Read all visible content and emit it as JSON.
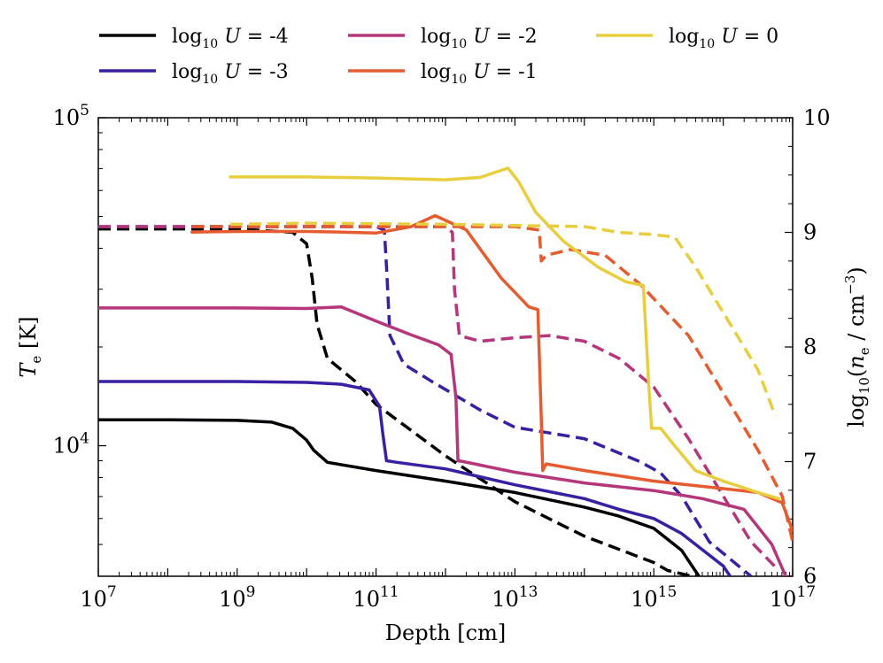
{
  "chart_data": {
    "type": "line",
    "title": "",
    "xlabel": "Depth [cm]",
    "ylabel_left": "T_e [K]",
    "ylabel_right": "log10(n_e / cm^-3)",
    "xscale": "log",
    "xlim": [
      10000000,
      100000000000000000
    ],
    "yscale_left": "log",
    "ylim_left": [
      4000,
      100000
    ],
    "ylim_right": [
      6,
      10
    ],
    "grid": false,
    "legend_position": "top (above plot, 3 columns)",
    "x_tick_labels": [
      {
        "base": "10",
        "exp": "7"
      },
      {
        "base": "10",
        "exp": "9"
      },
      {
        "base": "10",
        "exp": "11"
      },
      {
        "base": "10",
        "exp": "13"
      },
      {
        "base": "10",
        "exp": "15"
      },
      {
        "base": "10",
        "exp": "17"
      }
    ],
    "left_tick_labels": [
      {
        "base": "10",
        "exp": "4"
      },
      {
        "base": "10",
        "exp": "5"
      }
    ],
    "right_tick_labels": [
      "6",
      "7",
      "8",
      "9",
      "10"
    ],
    "line_styles": {
      "solid": "T_e (left axis)",
      "dashed": "n_e (right axis)"
    },
    "series": [
      {
        "name": "log10 U = -4",
        "legend_prefix": "log",
        "legend_sub": "10",
        "legend_var": "U",
        "legend_value": "= -4",
        "color": "#000004",
        "temperature": [
          [
            7.0,
            12000
          ],
          [
            8.0,
            12000
          ],
          [
            9.0,
            11950
          ],
          [
            9.5,
            11800
          ],
          [
            9.8,
            11300
          ],
          [
            10.0,
            10400
          ],
          [
            10.1,
            9700
          ],
          [
            10.3,
            8900
          ],
          [
            11.0,
            8400
          ],
          [
            12.0,
            7800
          ],
          [
            13.0,
            7200
          ],
          [
            14.0,
            6500
          ],
          [
            14.5,
            6100
          ],
          [
            15.0,
            5600
          ],
          [
            15.4,
            4800
          ],
          [
            15.65,
            4000
          ]
        ],
        "density": [
          [
            7.0,
            9.03
          ],
          [
            9.0,
            9.03
          ],
          [
            9.8,
            9.0
          ],
          [
            10.0,
            8.9
          ],
          [
            10.08,
            8.6
          ],
          [
            10.15,
            8.2
          ],
          [
            10.3,
            7.9
          ],
          [
            10.7,
            7.7
          ],
          [
            11.0,
            7.5
          ],
          [
            12.0,
            7.05
          ],
          [
            13.0,
            6.65
          ],
          [
            14.0,
            6.35
          ],
          [
            15.0,
            6.12
          ],
          [
            15.2,
            6.05
          ],
          [
            15.55,
            6.0
          ]
        ]
      },
      {
        "name": "log10 U = -3",
        "legend_prefix": "log",
        "legend_sub": "10",
        "legend_var": "U",
        "legend_value": "= -3",
        "color": "#3b1fa3",
        "temperature": [
          [
            7.0,
            15700
          ],
          [
            9.0,
            15700
          ],
          [
            10.0,
            15600
          ],
          [
            10.5,
            15400
          ],
          [
            10.9,
            14800
          ],
          [
            11.05,
            13200
          ],
          [
            11.1,
            10800
          ],
          [
            11.15,
            9000
          ],
          [
            11.3,
            8900
          ],
          [
            12.0,
            8500
          ],
          [
            13.0,
            7600
          ],
          [
            14.0,
            6900
          ],
          [
            14.5,
            6400
          ],
          [
            15.0,
            6000
          ],
          [
            15.4,
            5400
          ],
          [
            16.0,
            4300
          ],
          [
            16.1,
            4000
          ]
        ],
        "density": [
          [
            7.0,
            9.05
          ],
          [
            11.0,
            9.05
          ],
          [
            11.12,
            9.02
          ],
          [
            11.15,
            8.7
          ],
          [
            11.2,
            8.1
          ],
          [
            11.4,
            7.85
          ],
          [
            11.8,
            7.7
          ],
          [
            12.5,
            7.45
          ],
          [
            13.0,
            7.3
          ],
          [
            14.0,
            7.2
          ],
          [
            14.8,
            7.0
          ],
          [
            15.1,
            6.9
          ],
          [
            15.4,
            6.7
          ],
          [
            15.8,
            6.3
          ],
          [
            16.4,
            6.0
          ]
        ]
      },
      {
        "name": "log10 U = -2",
        "legend_prefix": "log",
        "legend_sub": "10",
        "legend_var": "U",
        "legend_value": "= -2",
        "color": "#b5367a",
        "temperature": [
          [
            7.0,
            26300
          ],
          [
            9.0,
            26300
          ],
          [
            10.0,
            26200
          ],
          [
            10.5,
            26500
          ],
          [
            11.0,
            24000
          ],
          [
            11.5,
            21800
          ],
          [
            11.9,
            20300
          ],
          [
            12.08,
            19000
          ],
          [
            12.15,
            14000
          ],
          [
            12.18,
            9000
          ],
          [
            12.25,
            8950
          ],
          [
            13.0,
            8300
          ],
          [
            14.0,
            7700
          ],
          [
            15.0,
            7300
          ],
          [
            15.7,
            6900
          ],
          [
            16.3,
            6400
          ],
          [
            16.7,
            5000
          ],
          [
            16.9,
            4000
          ]
        ],
        "density": [
          [
            7.0,
            9.05
          ],
          [
            12.0,
            9.05
          ],
          [
            12.1,
            9.0
          ],
          [
            12.13,
            8.5
          ],
          [
            12.2,
            8.1
          ],
          [
            12.5,
            8.05
          ],
          [
            13.0,
            8.08
          ],
          [
            13.5,
            8.1
          ],
          [
            14.0,
            8.05
          ],
          [
            14.5,
            7.9
          ],
          [
            15.0,
            7.65
          ],
          [
            15.5,
            7.2
          ],
          [
            16.0,
            6.7
          ],
          [
            16.4,
            6.3
          ],
          [
            16.8,
            6.05
          ]
        ]
      },
      {
        "name": "log10 U = -1",
        "legend_prefix": "log",
        "legend_sub": "10",
        "legend_var": "U",
        "legend_value": "= -1",
        "color": "#e55c30",
        "temperature": [
          [
            8.35,
            44800
          ],
          [
            9.0,
            45000
          ],
          [
            10.0,
            45000
          ],
          [
            10.5,
            44800
          ],
          [
            11.0,
            44500
          ],
          [
            11.5,
            46500
          ],
          [
            11.85,
            50300
          ],
          [
            12.3,
            45500
          ],
          [
            12.8,
            32500
          ],
          [
            13.2,
            26500
          ],
          [
            13.33,
            26000
          ],
          [
            13.38,
            12000
          ],
          [
            13.4,
            8400
          ],
          [
            13.45,
            8800
          ],
          [
            14.0,
            8400
          ],
          [
            15.0,
            7800
          ],
          [
            16.0,
            7400
          ],
          [
            16.5,
            7200
          ],
          [
            16.85,
            6700
          ],
          [
            17.0,
            5500
          ]
        ],
        "density": [
          [
            8.35,
            9.05
          ],
          [
            10.0,
            9.05
          ],
          [
            12.0,
            9.05
          ],
          [
            13.0,
            9.05
          ],
          [
            13.35,
            9.02
          ],
          [
            13.38,
            8.75
          ],
          [
            13.45,
            8.8
          ],
          [
            13.8,
            8.85
          ],
          [
            14.3,
            8.8
          ],
          [
            14.8,
            8.55
          ],
          [
            15.5,
            8.1
          ],
          [
            16.0,
            7.6
          ],
          [
            16.5,
            7.1
          ],
          [
            16.85,
            6.7
          ],
          [
            17.0,
            6.3
          ]
        ]
      },
      {
        "name": "log10 U = 0",
        "legend_prefix": "log",
        "legend_sub": "10",
        "legend_var": "U",
        "legend_value": "= 0",
        "color": "#e8ce3e",
        "temperature": [
          [
            8.9,
            66000
          ],
          [
            10.0,
            66000
          ],
          [
            11.0,
            65500
          ],
          [
            12.0,
            64700
          ],
          [
            12.5,
            65800
          ],
          [
            12.9,
            70200
          ],
          [
            13.05,
            64000
          ],
          [
            13.3,
            51500
          ],
          [
            13.7,
            42000
          ],
          [
            14.2,
            35000
          ],
          [
            14.6,
            31600
          ],
          [
            14.85,
            30800
          ],
          [
            14.93,
            15000
          ],
          [
            14.97,
            11300
          ],
          [
            15.1,
            11300
          ],
          [
            15.3,
            10000
          ],
          [
            15.6,
            8400
          ],
          [
            16.0,
            7800
          ],
          [
            16.5,
            7200
          ],
          [
            16.8,
            6900
          ]
        ],
        "density": [
          [
            8.9,
            9.07
          ],
          [
            10.0,
            9.08
          ],
          [
            12.0,
            9.07
          ],
          [
            13.0,
            9.06
          ],
          [
            14.0,
            9.05
          ],
          [
            14.5,
            9.0
          ],
          [
            15.0,
            8.98
          ],
          [
            15.3,
            8.96
          ],
          [
            15.6,
            8.7
          ],
          [
            16.0,
            8.3
          ],
          [
            16.5,
            7.8
          ],
          [
            16.75,
            7.4
          ]
        ]
      }
    ]
  }
}
